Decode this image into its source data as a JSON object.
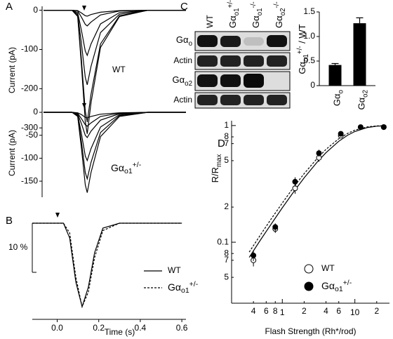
{
  "panel_labels": [
    "A",
    "B",
    "C",
    "D"
  ],
  "blot": {
    "lanes": [
      "WT",
      {
        "text": "Gα",
        "sub": "o1",
        "sup": "+/-"
      },
      {
        "text": "Gα",
        "sub": "o1",
        "sup": "-/-"
      },
      {
        "text": "Gα",
        "sub": "o2",
        "sup": "-/-"
      }
    ],
    "rows": [
      {
        "text": "Gα",
        "sub": "o"
      },
      "Actin",
      {
        "text": "Gα",
        "sub": "o2"
      },
      "Actin"
    ]
  },
  "chart_data": [
    {
      "type": "line",
      "ylabel": "Current (pA)",
      "annotation": "WT",
      "x": [
        -0.15,
        0,
        0.03,
        0.05,
        0.07,
        0.08,
        0.1,
        0.15,
        0.25,
        0.4,
        0.6
      ],
      "series": [
        {
          "color": "#000",
          "values": [
            0,
            0,
            -1,
            -7,
            -14,
            -15,
            -11,
            -5,
            -1,
            0,
            0
          ]
        },
        {
          "color": "#000",
          "values": [
            0,
            0,
            -2,
            -18,
            -36,
            -40,
            -30,
            -12,
            -2,
            0,
            0
          ]
        },
        {
          "color": "#000",
          "values": [
            0,
            0,
            -6,
            -52,
            -104,
            -115,
            -86,
            -35,
            -6,
            0,
            0
          ]
        },
        {
          "color": "#000",
          "values": [
            0,
            0,
            -10,
            -86,
            -171,
            -190,
            -143,
            -57,
            -10,
            0,
            0
          ]
        },
        {
          "color": "#000",
          "values": [
            0,
            0,
            -14,
            -128,
            -257,
            -285,
            -214,
            -86,
            -14,
            0,
            0
          ]
        },
        {
          "color": "#000",
          "values": [
            0,
            0,
            -16,
            -142,
            -284,
            -315,
            -236,
            -95,
            -16,
            0,
            0
          ]
        }
      ],
      "ylim": [
        -330,
        10
      ],
      "yticks": [
        0,
        -100,
        -200,
        -300
      ]
    },
    {
      "type": "line",
      "ylabel": "Current (pA)",
      "annotation": {
        "text": "Gα",
        "sub": "o1",
        "sup": "+/-"
      },
      "x": [
        -0.15,
        0,
        0.03,
        0.05,
        0.07,
        0.08,
        0.1,
        0.15,
        0.25,
        0.4,
        0.6
      ],
      "series": [
        {
          "color": "#000",
          "values": [
            0,
            0,
            -1,
            -5,
            -11,
            -12,
            -9,
            -4,
            -1,
            0,
            0
          ]
        },
        {
          "color": "#000",
          "values": [
            0,
            0,
            -2,
            -14,
            -27,
            -30,
            -23,
            -9,
            -2,
            0,
            0
          ]
        },
        {
          "color": "#000",
          "values": [
            0,
            0,
            -3,
            -25,
            -50,
            -55,
            -41,
            -17,
            -3,
            0,
            0
          ]
        },
        {
          "color": "#000",
          "values": [
            0,
            0,
            -5,
            -47,
            -95,
            -105,
            -79,
            -32,
            -5,
            0,
            0
          ]
        },
        {
          "color": "#000",
          "values": [
            0,
            0,
            -7,
            -65,
            -131,
            -145,
            -109,
            -44,
            -7,
            0,
            0
          ]
        },
        {
          "color": "#000",
          "values": [
            0,
            0,
            -9,
            -79,
            -158,
            -175,
            -131,
            -53,
            -9,
            0,
            0
          ]
        }
      ],
      "ylim": [
        -185,
        10
      ],
      "yticks": [
        0,
        -50,
        -100,
        -150
      ]
    },
    {
      "type": "line",
      "xlabel": "Time (s)",
      "x": [
        -0.12,
        0,
        0.03,
        0.06,
        0.09,
        0.12,
        0.15,
        0.18,
        0.22,
        0.3,
        0.45,
        0.6
      ],
      "xlim": [
        -0.12,
        0.62
      ],
      "xticks": [
        {
          "value": 0,
          "label": "0.0"
        },
        0.2,
        0.4,
        0.6
      ],
      "ylim": [
        -19,
        1
      ],
      "scale_bar": {
        "value": 10,
        "label": "10 %"
      },
      "series": [
        {
          "name": "WT",
          "color": "#000",
          "style": "solid",
          "values": [
            0,
            0,
            0,
            -3,
            -12,
            -17,
            -13,
            -6,
            -1,
            0,
            0,
            0
          ]
        },
        {
          "name": {
            "text": "Gα",
            "sub": "o1",
            "sup": "+/-"
          },
          "color": "#000",
          "style": "dashed",
          "values": [
            0,
            0,
            0,
            -2,
            -11,
            -17,
            -14,
            -7,
            -1.5,
            0,
            0,
            0
          ]
        }
      ]
    },
    {
      "type": "bar",
      "ylabel": {
        "text": "Gα",
        "sub": "o1",
        "sup": "+/-",
        "tail": " / WT"
      },
      "categories": [
        {
          "text": "Gα",
          "sub": "o"
        },
        {
          "text": "Gα",
          "sub": "o2"
        }
      ],
      "values": [
        0.42,
        1.27
      ],
      "errors": [
        0.03,
        0.11
      ],
      "color": "#000",
      "ylim": [
        0,
        1.5
      ],
      "yticks": [
        0,
        0.5,
        {
          "value": 1,
          "label": "1.0"
        },
        1.5
      ]
    },
    {
      "type": "scatter",
      "xlabel": "Flash Strength (Rh*/rod)",
      "ylabel": {
        "text": "R/R",
        "sub": "max"
      },
      "xlog": true,
      "ylog": true,
      "xlim": [
        0.2,
        30
      ],
      "ylim": [
        0.03,
        1.1
      ],
      "xticks": [
        {
          "value": 0.4,
          "label": "4"
        },
        {
          "value": 0.6,
          "label": "6"
        },
        {
          "value": 0.8,
          "label": "8"
        },
        1,
        {
          "value": 2,
          "label": "2"
        },
        {
          "value": 4,
          "label": "4"
        },
        {
          "value": 6,
          "label": "6"
        },
        10,
        {
          "value": 20,
          "label": "2"
        }
      ],
      "yticks": [
        1,
        {
          "value": 0.8,
          "label": "8"
        },
        {
          "value": 0.7,
          "label": "7"
        },
        {
          "value": 0.5,
          "label": "5"
        },
        {
          "value": 0.2,
          "label": "2"
        },
        0.1,
        {
          "value": 0.08,
          "label": "8"
        },
        {
          "value": 0.07,
          "label": "7"
        },
        {
          "value": 0.05,
          "label": "5"
        }
      ],
      "series": [
        {
          "name": "WT",
          "marker": "open",
          "color": "#000",
          "x": [
            0.4,
            0.8,
            1.5,
            3.2,
            6.4,
            25
          ],
          "values": [
            0.07,
            0.13,
            0.29,
            0.53,
            0.82,
            0.97
          ],
          "errors": [
            0.008,
            0.01,
            0.03,
            0.04,
            0.03,
            0.01
          ]
        },
        {
          "name": {
            "text": "Gα",
            "sub": "o1",
            "sup": "+/-"
          },
          "marker": "filled",
          "color": "#000",
          "x": [
            0.4,
            0.8,
            1.5,
            3.2,
            6.4,
            12,
            25
          ],
          "values": [
            0.077,
            0.135,
            0.33,
            0.58,
            0.85,
            0.97,
            0.97
          ],
          "errors": [
            0.008,
            0.01,
            0.03,
            0.04,
            0.03,
            0.01,
            0.01
          ]
        }
      ],
      "fits": [
        {
          "color": "#000",
          "style": "solid",
          "x": [
            0.35,
            0.5,
            0.7,
            1,
            1.5,
            2,
            3,
            4,
            6,
            8,
            10,
            15,
            20,
            27
          ],
          "values": [
            0.0741,
            0.1044,
            0.1426,
            0.1975,
            0.281,
            0.356,
            0.483,
            0.585,
            0.733,
            0.828,
            0.889,
            0.963,
            0.988,
            0.997
          ]
        },
        {
          "color": "#000",
          "style": "dashed",
          "x": [
            0.35,
            0.5,
            0.7,
            1,
            1.5,
            2,
            3,
            4,
            6,
            8,
            10,
            15,
            20,
            27
          ],
          "values": [
            0.0822,
            0.1155,
            0.158,
            0.217,
            0.308,
            0.387,
            0.52,
            0.625,
            0.77,
            0.859,
            0.914,
            0.975,
            0.993,
            0.999
          ]
        }
      ]
    }
  ]
}
